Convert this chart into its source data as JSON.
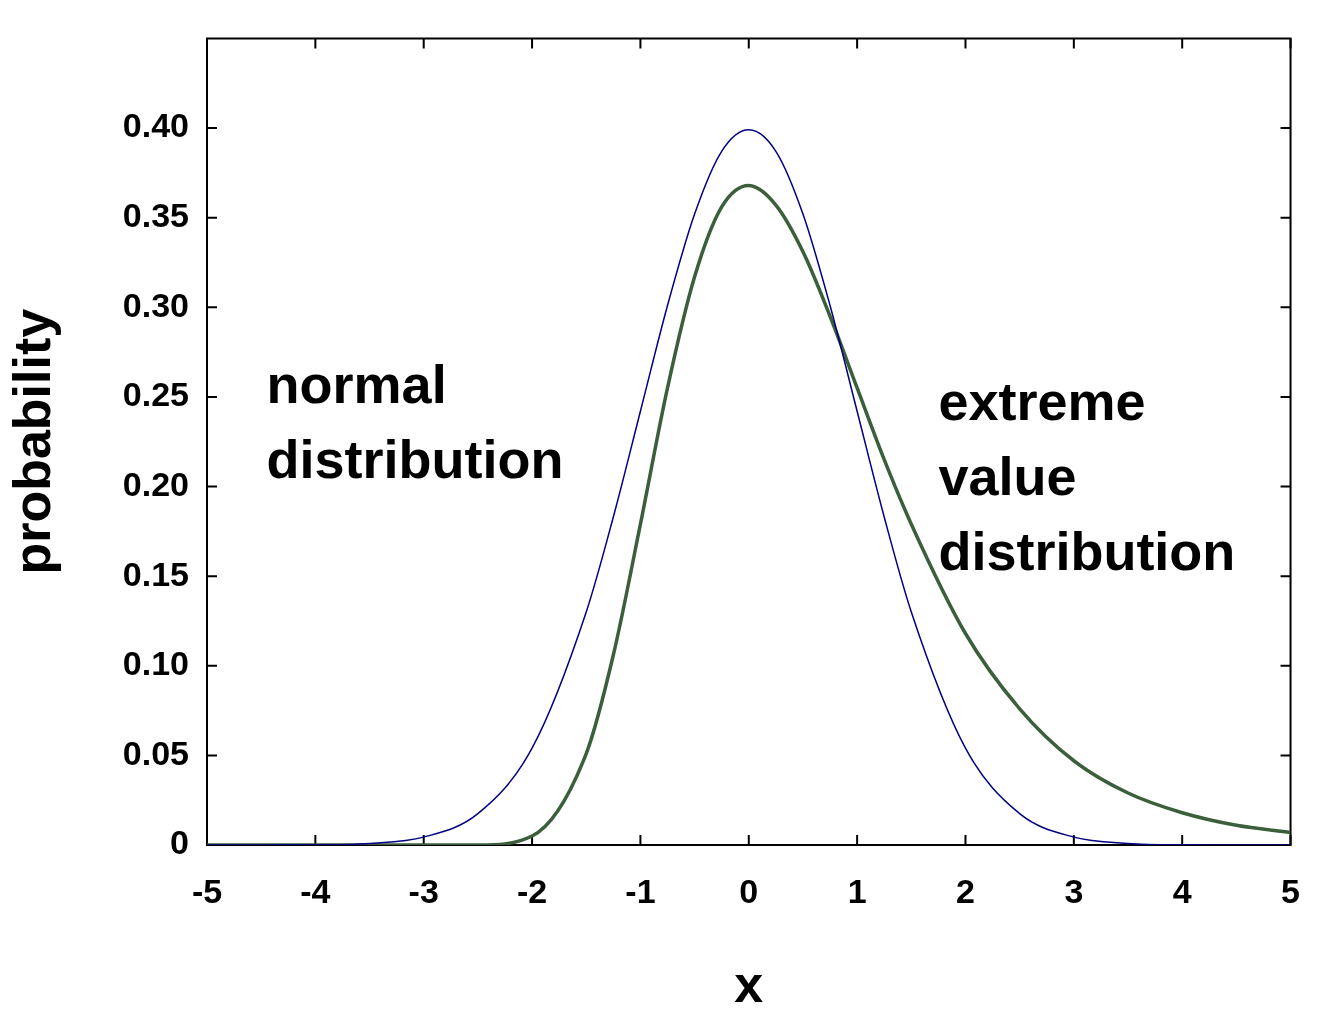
{
  "chart_data": {
    "type": "line",
    "xlabel": "x",
    "ylabel": "probability",
    "x": [
      -5,
      -4.5,
      -4,
      -3.5,
      -3,
      -2.5,
      -2,
      -1.5,
      -1.25,
      -1,
      -0.75,
      -0.5,
      -0.25,
      0,
      0.25,
      0.5,
      0.75,
      1,
      1.25,
      1.5,
      2,
      2.5,
      3,
      3.5,
      4,
      4.5,
      5
    ],
    "series": [
      {
        "name": "normal distribution",
        "color": "#000080",
        "values": [
          0,
          0,
          0.0001,
          0.0009,
          0.0044,
          0.0175,
          0.054,
          0.13,
          0.183,
          0.242,
          0.301,
          0.352,
          0.387,
          0.399,
          0.387,
          0.352,
          0.301,
          0.242,
          0.183,
          0.13,
          0.054,
          0.0175,
          0.0044,
          0.0009,
          0.0001,
          0,
          0
        ]
      },
      {
        "name": "extreme value distribution",
        "color": "#3a5f3a",
        "values": [
          0,
          0,
          0,
          0,
          0,
          0,
          0.005,
          0.051,
          0.106,
          0.179,
          0.255,
          0.317,
          0.356,
          0.368,
          0.357,
          0.331,
          0.295,
          0.255,
          0.215,
          0.179,
          0.118,
          0.076,
          0.047,
          0.029,
          0.018,
          0.011,
          0.007
        ]
      }
    ],
    "xlim": [
      -5,
      5
    ],
    "xticks": [
      -5,
      -4,
      -3,
      -2,
      -1,
      0,
      1,
      2,
      3,
      4,
      5
    ],
    "ylim": [
      0,
      0.45
    ],
    "yticks": [
      0,
      {
        "value": 0.05,
        "label": "0.05"
      },
      {
        "value": 0.1,
        "label": "0.10"
      },
      {
        "value": 0.15,
        "label": "0.15"
      },
      {
        "value": 0.2,
        "label": "0.20"
      },
      {
        "value": 0.25,
        "label": "0.25"
      },
      {
        "value": 0.3,
        "label": "0.30"
      },
      {
        "value": 0.35,
        "label": "0.35"
      },
      {
        "value": 0.4,
        "label": "0.40"
      }
    ],
    "grid": false,
    "legend": false,
    "marker": "none",
    "line_style": "solid"
  }
}
